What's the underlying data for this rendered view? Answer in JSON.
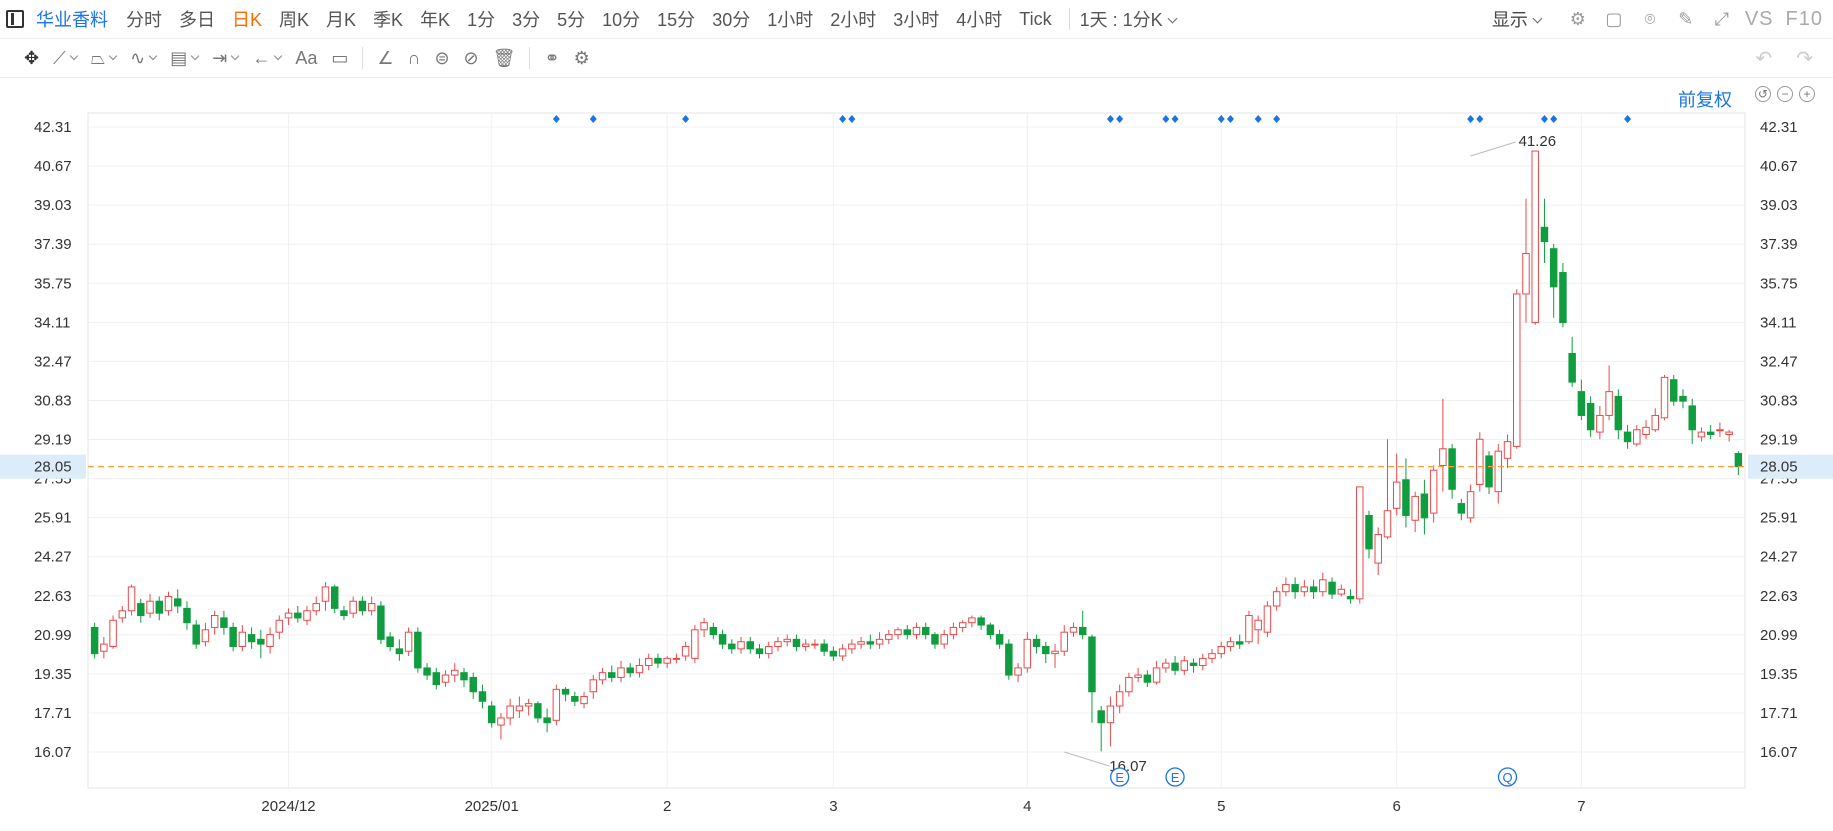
{
  "toolbar": {
    "stock_name": "华业香料",
    "timeframes": [
      "分时",
      "多日",
      "日K",
      "周K",
      "月K",
      "季K",
      "年K",
      "1分",
      "3分",
      "5分",
      "10分",
      "15分",
      "30分",
      "1小时",
      "2小时",
      "3小时",
      "4小时",
      "Tick"
    ],
    "active_timeframe": "日K",
    "multi_period": "1天 : 1分K",
    "display_label": "显示",
    "vs_label": "VS",
    "f10_label": "F10"
  },
  "drawing_tools": {
    "text_tool_label": "Aa"
  },
  "price_mode": "前复权",
  "colors": {
    "up": "#e84a4a",
    "down": "#0f9d3f",
    "accent": "#1a73e8",
    "active": "#ff6a00",
    "current_price_line": "#ff9a3d",
    "current_price_bg": "#dcecfb"
  },
  "chart_data": {
    "type": "candlestick",
    "y_ticks": [
      "42.31",
      "40.67",
      "39.03",
      "37.39",
      "35.75",
      "34.11",
      "32.47",
      "30.83",
      "29.19",
      "27.55",
      "25.91",
      "24.27",
      "22.63",
      "20.99",
      "19.35",
      "17.71",
      "16.07"
    ],
    "ylim": [
      15.25,
      43.13
    ],
    "x_labels": [
      {
        "label": "2024/12",
        "index": 21
      },
      {
        "label": "2025/01",
        "index": 43
      },
      {
        "label": "2",
        "index": 62
      },
      {
        "label": "3",
        "index": 80
      },
      {
        "label": "4",
        "index": 101
      },
      {
        "label": "5",
        "index": 122
      },
      {
        "label": "6",
        "index": 141
      },
      {
        "label": "7",
        "index": 161
      }
    ],
    "current_price": "28.05",
    "max_label": {
      "value": "41.26",
      "index": 149
    },
    "min_label": {
      "value": "16.07",
      "index": 105
    },
    "event_markers_top": [
      50,
      54,
      64,
      81,
      82,
      110,
      111,
      116,
      117,
      122,
      123,
      126,
      128,
      149,
      150,
      157,
      158,
      166
    ],
    "event_markers_bottom": [
      {
        "index": 111,
        "symbol": "E"
      },
      {
        "index": 117,
        "symbol": "E"
      },
      {
        "index": 153,
        "symbol": "Q"
      }
    ],
    "candles": [
      [
        21.3,
        20.2,
        21.5,
        20.0
      ],
      [
        20.3,
        20.6,
        20.9,
        20.0
      ],
      [
        20.5,
        21.6,
        21.8,
        20.4
      ],
      [
        21.7,
        22.0,
        22.2,
        21.5
      ],
      [
        22.0,
        23.0,
        23.1,
        21.8
      ],
      [
        22.3,
        21.8,
        22.5,
        21.5
      ],
      [
        21.9,
        22.4,
        22.7,
        21.7
      ],
      [
        22.4,
        21.9,
        22.6,
        21.6
      ],
      [
        22.0,
        22.6,
        22.8,
        21.8
      ],
      [
        22.5,
        22.2,
        22.9,
        21.9
      ],
      [
        22.1,
        21.5,
        22.4,
        21.2
      ],
      [
        21.4,
        20.6,
        21.6,
        20.4
      ],
      [
        20.7,
        21.2,
        21.5,
        20.5
      ],
      [
        21.3,
        21.8,
        22.0,
        21.0
      ],
      [
        21.7,
        21.3,
        22.0,
        21.0
      ],
      [
        21.3,
        20.5,
        21.5,
        20.3
      ],
      [
        20.5,
        21.1,
        21.4,
        20.3
      ],
      [
        21.0,
        20.7,
        21.3,
        20.4
      ],
      [
        20.8,
        20.6,
        21.2,
        20.0
      ],
      [
        20.5,
        21.0,
        21.3,
        20.2
      ],
      [
        21.1,
        21.6,
        21.8,
        20.8
      ],
      [
        21.7,
        21.9,
        22.1,
        21.4
      ],
      [
        21.9,
        21.7,
        22.2,
        21.5
      ],
      [
        21.6,
        22.0,
        22.2,
        21.4
      ],
      [
        22.0,
        22.3,
        22.6,
        21.8
      ],
      [
        22.4,
        23.0,
        23.2,
        22.0
      ],
      [
        23.0,
        22.1,
        23.1,
        21.9
      ],
      [
        22.0,
        21.8,
        22.2,
        21.6
      ],
      [
        21.9,
        22.4,
        22.6,
        21.7
      ],
      [
        22.4,
        22.0,
        22.6,
        21.8
      ],
      [
        22.0,
        22.3,
        22.6,
        21.8
      ],
      [
        22.2,
        20.8,
        22.4,
        20.6
      ],
      [
        20.9,
        20.5,
        21.1,
        20.3
      ],
      [
        20.4,
        20.2,
        20.8,
        19.9
      ],
      [
        20.3,
        21.1,
        21.3,
        20.1
      ],
      [
        21.1,
        19.6,
        21.3,
        19.4
      ],
      [
        19.6,
        19.3,
        19.8,
        19.1
      ],
      [
        19.4,
        18.9,
        19.6,
        18.7
      ],
      [
        19.0,
        19.3,
        19.5,
        18.8
      ],
      [
        19.3,
        19.5,
        19.8,
        19.0
      ],
      [
        19.4,
        19.1,
        19.6,
        18.8
      ],
      [
        19.2,
        18.6,
        19.4,
        18.3
      ],
      [
        18.6,
        18.2,
        18.9,
        17.9
      ],
      [
        18.0,
        17.3,
        18.2,
        17.1
      ],
      [
        17.2,
        17.5,
        17.7,
        16.6
      ],
      [
        17.5,
        18.0,
        18.3,
        17.2
      ],
      [
        17.8,
        18.0,
        18.4,
        17.5
      ],
      [
        18.0,
        18.1,
        18.3,
        17.6
      ],
      [
        18.1,
        17.5,
        18.2,
        17.3
      ],
      [
        17.5,
        17.3,
        17.9,
        16.9
      ],
      [
        17.4,
        18.7,
        18.9,
        17.2
      ],
      [
        18.7,
        18.5,
        18.8,
        18.2
      ],
      [
        18.4,
        18.2,
        18.6,
        18.0
      ],
      [
        18.1,
        18.4,
        18.6,
        17.9
      ],
      [
        18.6,
        19.1,
        19.3,
        18.3
      ],
      [
        19.1,
        19.4,
        19.6,
        18.9
      ],
      [
        19.4,
        19.2,
        19.7,
        19.0
      ],
      [
        19.2,
        19.6,
        19.9,
        19.0
      ],
      [
        19.6,
        19.4,
        19.8,
        19.2
      ],
      [
        19.4,
        19.7,
        20.0,
        19.2
      ],
      [
        19.7,
        20.0,
        20.2,
        19.5
      ],
      [
        20.0,
        19.8,
        20.2,
        19.6
      ],
      [
        19.8,
        20.0,
        20.1,
        19.6
      ],
      [
        20.0,
        20.0,
        20.2,
        19.8
      ],
      [
        20.1,
        20.5,
        20.7,
        19.9
      ],
      [
        20.0,
        21.2,
        21.4,
        19.8
      ],
      [
        21.2,
        21.5,
        21.7,
        20.9
      ],
      [
        21.3,
        21.0,
        21.5,
        20.8
      ],
      [
        21.0,
        20.6,
        21.2,
        20.4
      ],
      [
        20.6,
        20.4,
        20.8,
        20.2
      ],
      [
        20.4,
        20.7,
        20.9,
        20.2
      ],
      [
        20.7,
        20.4,
        20.9,
        20.2
      ],
      [
        20.4,
        20.2,
        20.6,
        20.0
      ],
      [
        20.2,
        20.5,
        20.7,
        20.0
      ],
      [
        20.5,
        20.7,
        20.9,
        20.3
      ],
      [
        20.7,
        20.8,
        21.0,
        20.5
      ],
      [
        20.8,
        20.5,
        21.0,
        20.3
      ],
      [
        20.5,
        20.6,
        20.8,
        20.3
      ],
      [
        20.6,
        20.6,
        20.8,
        20.4
      ],
      [
        20.6,
        20.3,
        20.8,
        20.1
      ],
      [
        20.3,
        20.1,
        20.5,
        19.9
      ],
      [
        20.1,
        20.4,
        20.6,
        19.9
      ],
      [
        20.4,
        20.6,
        20.8,
        20.2
      ],
      [
        20.6,
        20.7,
        20.9,
        20.4
      ],
      [
        20.7,
        20.6,
        21.0,
        20.4
      ],
      [
        20.6,
        20.8,
        21.1,
        20.4
      ],
      [
        20.8,
        21.0,
        21.2,
        20.6
      ],
      [
        21.0,
        21.2,
        21.3,
        20.8
      ],
      [
        21.2,
        21.0,
        21.4,
        20.8
      ],
      [
        21.0,
        21.3,
        21.5,
        20.8
      ],
      [
        21.3,
        21.0,
        21.5,
        20.8
      ],
      [
        21.0,
        20.6,
        21.1,
        20.4
      ],
      [
        20.6,
        21.0,
        21.2,
        20.4
      ],
      [
        21.0,
        21.3,
        21.5,
        20.8
      ],
      [
        21.3,
        21.5,
        21.6,
        21.1
      ],
      [
        21.5,
        21.7,
        21.8,
        21.3
      ],
      [
        21.7,
        21.4,
        21.8,
        21.2
      ],
      [
        21.4,
        21.0,
        21.5,
        20.8
      ],
      [
        21.0,
        20.6,
        21.2,
        20.4
      ],
      [
        20.6,
        19.3,
        20.8,
        19.1
      ],
      [
        19.3,
        19.6,
        19.8,
        19.0
      ],
      [
        19.6,
        20.8,
        21.1,
        19.4
      ],
      [
        20.8,
        20.5,
        21.0,
        20.2
      ],
      [
        20.5,
        20.2,
        20.7,
        19.8
      ],
      [
        20.2,
        20.3,
        20.6,
        19.6
      ],
      [
        20.3,
        21.1,
        21.4,
        20.1
      ],
      [
        21.1,
        21.3,
        21.5,
        20.9
      ],
      [
        21.3,
        21.0,
        22.0,
        20.8
      ],
      [
        20.9,
        18.6,
        21.0,
        17.3
      ],
      [
        17.8,
        17.3,
        18.0,
        16.1
      ],
      [
        17.3,
        18.0,
        18.4,
        16.3
      ],
      [
        18.0,
        18.6,
        18.9,
        17.7
      ],
      [
        18.6,
        19.2,
        19.4,
        18.4
      ],
      [
        19.2,
        19.3,
        19.6,
        19.0
      ],
      [
        19.3,
        19.0,
        19.5,
        18.8
      ],
      [
        19.0,
        19.6,
        19.9,
        18.9
      ],
      [
        19.6,
        19.8,
        20.0,
        19.4
      ],
      [
        19.8,
        19.5,
        20.1,
        19.3
      ],
      [
        19.5,
        19.9,
        20.1,
        19.3
      ],
      [
        19.8,
        19.7,
        20.0,
        19.4
      ],
      [
        19.7,
        20.0,
        20.2,
        19.5
      ],
      [
        20.0,
        20.2,
        20.4,
        19.8
      ],
      [
        20.2,
        20.5,
        20.7,
        20.0
      ],
      [
        20.5,
        20.7,
        20.9,
        20.3
      ],
      [
        20.7,
        20.6,
        21.0,
        20.4
      ],
      [
        20.7,
        21.8,
        22.0,
        20.6
      ],
      [
        21.2,
        21.6,
        21.8,
        20.6
      ],
      [
        21.1,
        22.2,
        22.4,
        20.9
      ],
      [
        22.2,
        22.8,
        23.0,
        22.0
      ],
      [
        22.8,
        23.1,
        23.4,
        22.6
      ],
      [
        23.1,
        22.8,
        23.4,
        22.5
      ],
      [
        22.8,
        23.0,
        23.3,
        22.6
      ],
      [
        23.0,
        22.8,
        23.3,
        22.5
      ],
      [
        22.8,
        23.3,
        23.6,
        22.6
      ],
      [
        23.2,
        22.7,
        23.4,
        22.5
      ],
      [
        22.7,
        22.9,
        23.1,
        22.6
      ],
      [
        22.6,
        22.5,
        22.9,
        22.3
      ],
      [
        22.5,
        27.2,
        27.2,
        22.3
      ],
      [
        26.0,
        24.6,
        26.2,
        24.2
      ],
      [
        24.0,
        25.2,
        25.5,
        23.5
      ],
      [
        25.1,
        26.2,
        29.2,
        25.0
      ],
      [
        26.3,
        27.4,
        28.6,
        26.0
      ],
      [
        27.5,
        26.0,
        28.4,
        25.5
      ],
      [
        25.8,
        26.8,
        27.0,
        25.3
      ],
      [
        26.9,
        25.9,
        27.5,
        25.2
      ],
      [
        26.1,
        27.9,
        28.1,
        25.7
      ],
      [
        28.1,
        28.8,
        30.9,
        27.0
      ],
      [
        28.8,
        27.1,
        29.0,
        26.7
      ],
      [
        26.5,
        26.1,
        26.7,
        25.8
      ],
      [
        25.9,
        27.0,
        27.3,
        25.7
      ],
      [
        27.3,
        29.2,
        29.5,
        27.0
      ],
      [
        28.5,
        27.2,
        28.7,
        26.9
      ],
      [
        27.0,
        28.7,
        29.0,
        26.5
      ],
      [
        28.4,
        29.1,
        29.4,
        28.0
      ],
      [
        28.9,
        35.3,
        35.5,
        28.8
      ],
      [
        35.3,
        37.0,
        39.3,
        34.1
      ],
      [
        34.1,
        41.3,
        41.3,
        34.0
      ],
      [
        38.1,
        37.5,
        39.3,
        36.6
      ],
      [
        37.2,
        35.6,
        37.4,
        34.3
      ],
      [
        36.2,
        34.1,
        36.6,
        33.9
      ],
      [
        32.8,
        31.6,
        33.5,
        31.4
      ],
      [
        31.2,
        30.2,
        31.7,
        30.0
      ],
      [
        30.7,
        29.6,
        31.0,
        29.3
      ],
      [
        29.5,
        30.2,
        30.6,
        29.2
      ],
      [
        30.2,
        31.2,
        32.3,
        30.0
      ],
      [
        31.0,
        29.6,
        31.3,
        29.2
      ],
      [
        29.5,
        29.1,
        29.8,
        28.8
      ],
      [
        29.0,
        29.6,
        29.8,
        28.9
      ],
      [
        29.4,
        29.7,
        30.0,
        29.2
      ],
      [
        29.6,
        30.2,
        30.5,
        29.5
      ],
      [
        30.1,
        31.8,
        31.9,
        30.0
      ],
      [
        31.7,
        30.8,
        31.9,
        30.6
      ],
      [
        31.0,
        30.8,
        31.3,
        30.5
      ],
      [
        30.6,
        29.6,
        30.9,
        29.0
      ],
      [
        29.3,
        29.5,
        29.7,
        29.1
      ],
      [
        29.5,
        29.4,
        29.8,
        29.2
      ],
      [
        29.6,
        29.6,
        29.9,
        29.3
      ],
      [
        29.4,
        29.5,
        29.6,
        29.1
      ],
      [
        28.6,
        28.05,
        28.7,
        27.7
      ]
    ]
  }
}
